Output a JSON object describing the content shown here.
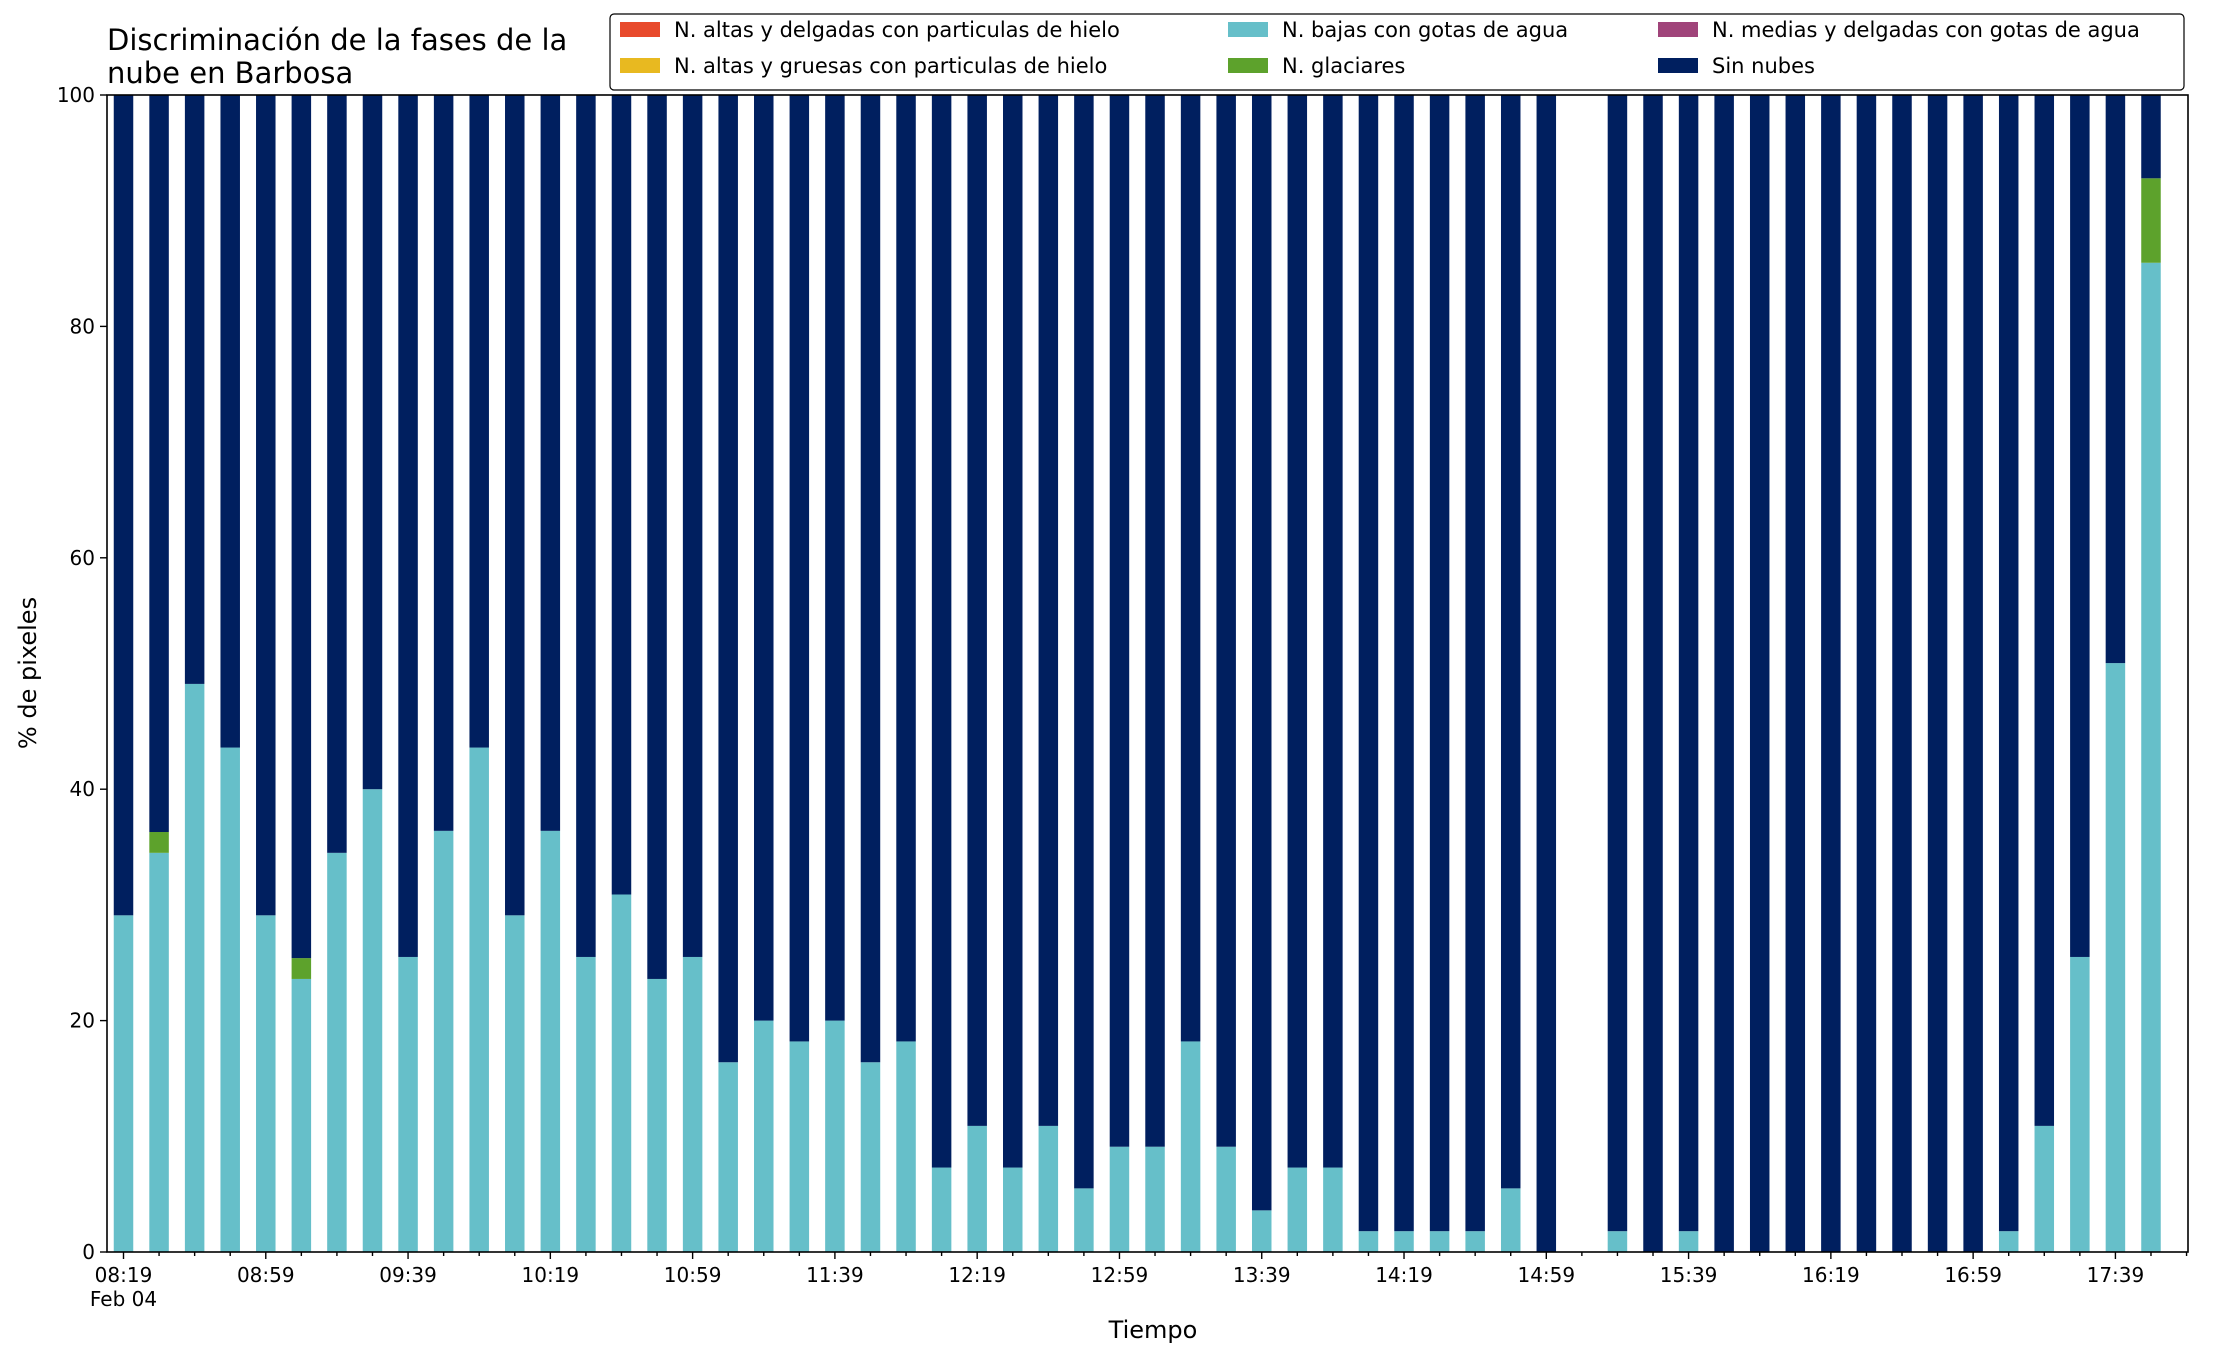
{
  "chart_data": {
    "type": "bar",
    "stacked": true,
    "title_lines": [
      "Discriminación de la fases de la",
      "nube en Barbosa"
    ],
    "xlabel": "Tiempo",
    "ylabel": "% de pixeles",
    "ylim": [
      0,
      100
    ],
    "yticks": [
      "0",
      "20",
      "40",
      "60",
      "80",
      "100"
    ],
    "x_tick_labels": [
      "08:19",
      "08:59",
      "09:39",
      "10:19",
      "10:59",
      "11:39",
      "12:19",
      "12:59",
      "13:39",
      "14:19",
      "14:59",
      "15:39",
      "16:19",
      "16:59",
      "17:39"
    ],
    "x_date_label": "Feb 04",
    "x_start": "08:19",
    "x_step_minutes": 10,
    "grid": false,
    "legend_position": "top-right",
    "categories": [
      "08:19",
      "08:29",
      "08:39",
      "08:49",
      "08:59",
      "09:09",
      "09:19",
      "09:29",
      "09:39",
      "09:49",
      "09:59",
      "10:09",
      "10:19",
      "10:29",
      "10:39",
      "10:49",
      "10:59",
      "11:09",
      "11:19",
      "11:29",
      "11:39",
      "11:49",
      "11:59",
      "12:09",
      "12:19",
      "12:29",
      "12:39",
      "12:49",
      "12:59",
      "13:09",
      "13:19",
      "13:29",
      "13:39",
      "13:49",
      "13:59",
      "14:09",
      "14:19",
      "14:29",
      "14:39",
      "14:49",
      "14:59",
      "15:09",
      "15:19",
      "15:29",
      "15:39",
      "15:49",
      "15:59",
      "16:09",
      "16:19",
      "16:29",
      "16:39",
      "16:49",
      "16:59",
      "17:09",
      "17:19",
      "17:29",
      "17:39",
      "17:49"
    ],
    "series": [
      {
        "name": "N. altas y delgadas con particulas de hielo",
        "color": "#e84a2c",
        "values": [
          0,
          0,
          0,
          0,
          0,
          0,
          0,
          0,
          0,
          0,
          0,
          0,
          0,
          0,
          0,
          0,
          0,
          0,
          0,
          0,
          0,
          0,
          0,
          0,
          0,
          0,
          0,
          0,
          0,
          0,
          0,
          0,
          0,
          0,
          0,
          0,
          0,
          0,
          0,
          0,
          0,
          0,
          0,
          0,
          0,
          0,
          0,
          0,
          0,
          0,
          0,
          0,
          0,
          0,
          0,
          0,
          0,
          0
        ]
      },
      {
        "name": "N. altas y gruesas con particulas de hielo",
        "color": "#e8b920",
        "values": [
          0,
          0,
          0,
          0,
          0,
          0,
          0,
          0,
          0,
          0,
          0,
          0,
          0,
          0,
          0,
          0,
          0,
          0,
          0,
          0,
          0,
          0,
          0,
          0,
          0,
          0,
          0,
          0,
          0,
          0,
          0,
          0,
          0,
          0,
          0,
          0,
          0,
          0,
          0,
          0,
          0,
          0,
          0,
          0,
          0,
          0,
          0,
          0,
          0,
          0,
          0,
          0,
          0,
          0,
          0,
          0,
          0,
          0
        ]
      },
      {
        "name": "N. bajas con gotas de agua",
        "color": "#66bfc9",
        "values": [
          29.1,
          34.5,
          49.1,
          43.6,
          29.1,
          23.6,
          34.5,
          40.0,
          25.5,
          36.4,
          43.6,
          29.1,
          36.4,
          25.5,
          30.9,
          23.6,
          25.5,
          16.4,
          20.0,
          18.2,
          20.0,
          16.4,
          18.2,
          7.3,
          10.9,
          7.3,
          10.9,
          5.5,
          9.1,
          9.1,
          18.2,
          9.1,
          3.6,
          7.3,
          7.3,
          1.8,
          1.8,
          1.8,
          1.8,
          5.5,
          0,
          null,
          1.8,
          0,
          1.8,
          0,
          0,
          0,
          0,
          0,
          0,
          0,
          0,
          1.8,
          10.9,
          25.5,
          50.9,
          85.5
        ]
      },
      {
        "name": "N. glaciares",
        "color": "#5da22c",
        "values": [
          0,
          1.8,
          0,
          0,
          0,
          1.8,
          0,
          0,
          0,
          0,
          0,
          0,
          0,
          0,
          0,
          0,
          0,
          0,
          0,
          0,
          0,
          0,
          0,
          0,
          0,
          0,
          0,
          0,
          0,
          0,
          0,
          0,
          0,
          0,
          0,
          0,
          0,
          0,
          0,
          0,
          0,
          null,
          0,
          0,
          0,
          0,
          0,
          0,
          0,
          0,
          0,
          0,
          0,
          0,
          0,
          0,
          0,
          7.3
        ]
      },
      {
        "name": "N. medias y delgadas con gotas de agua",
        "color": "#a0447a",
        "values": [
          0,
          0,
          0,
          0,
          0,
          0,
          0,
          0,
          0,
          0,
          0,
          0,
          0,
          0,
          0,
          0,
          0,
          0,
          0,
          0,
          0,
          0,
          0,
          0,
          0,
          0,
          0,
          0,
          0,
          0,
          0,
          0,
          0,
          0,
          0,
          0,
          0,
          0,
          0,
          0,
          0,
          null,
          0,
          0,
          0,
          0,
          0,
          0,
          0,
          0,
          0,
          0,
          0,
          0,
          0,
          0,
          0,
          0
        ]
      },
      {
        "name": "Sin nubes",
        "color": "#001f5f",
        "values": [
          70.9,
          63.7,
          50.9,
          56.4,
          70.9,
          74.6,
          65.5,
          60.0,
          74.5,
          63.6,
          56.4,
          70.9,
          63.6,
          74.5,
          69.1,
          76.4,
          74.5,
          83.6,
          80.0,
          81.8,
          80.0,
          83.6,
          81.8,
          92.7,
          89.1,
          92.7,
          89.1,
          94.5,
          90.9,
          90.9,
          81.8,
          90.9,
          96.4,
          92.7,
          92.7,
          98.2,
          98.2,
          98.2,
          98.2,
          94.5,
          100,
          null,
          98.2,
          100,
          98.2,
          100,
          100,
          100,
          100,
          100,
          100,
          100,
          100,
          98.2,
          89.1,
          74.5,
          49.1,
          7.2
        ]
      }
    ]
  }
}
